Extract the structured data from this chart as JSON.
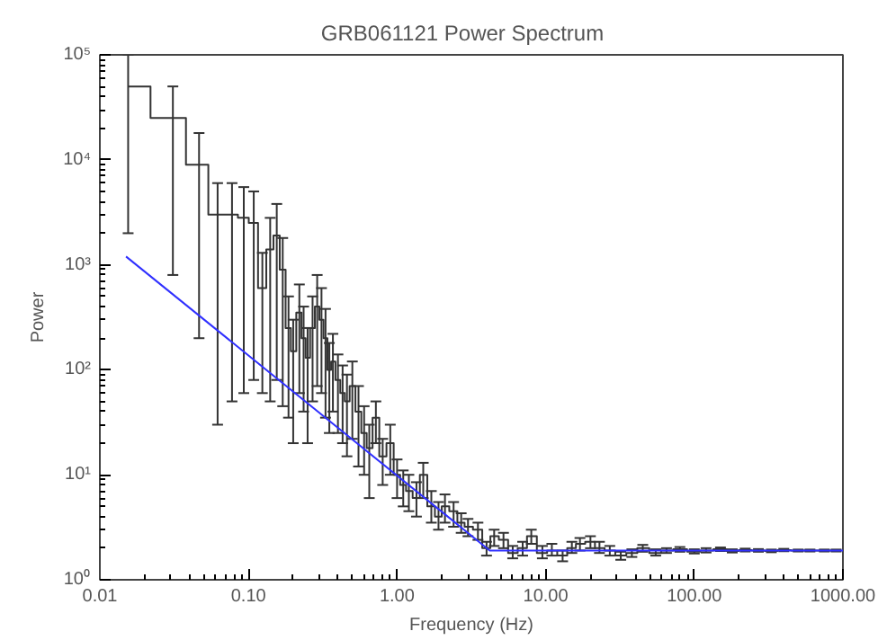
{
  "chart_data": {
    "type": "step",
    "title": "GRB061121    Power Spectrum",
    "xlabel": "Frequency (Hz)",
    "ylabel": "Power",
    "log": "xy",
    "grid": false,
    "xlim": [
      0.01,
      1000
    ],
    "ylim": [
      1,
      100000
    ],
    "xticks": [
      {
        "value": 0.01,
        "label": "0.01"
      },
      {
        "value": 0.1,
        "label": "0.10"
      },
      {
        "value": 1,
        "label": "1.00"
      },
      {
        "value": 10,
        "label": "10.00"
      },
      {
        "value": 100,
        "label": "100.00"
      },
      {
        "value": 1000,
        "label": "1000.00"
      }
    ],
    "yticks": [
      {
        "value": 1,
        "label": "10⁰"
      },
      {
        "value": 10,
        "label": "10¹"
      },
      {
        "value": 100,
        "label": "10²"
      },
      {
        "value": 1000,
        "label": "10³"
      },
      {
        "value": 10000,
        "label": "10⁴"
      },
      {
        "value": 100000,
        "label": "10⁵"
      }
    ],
    "series": [
      {
        "color": "#333333",
        "x": [
          0.0155,
          0.031,
          0.0465,
          0.062,
          0.0775,
          0.093,
          0.1085,
          0.124,
          0.14,
          0.155,
          0.17,
          0.186,
          0.2,
          0.22,
          0.235,
          0.25,
          0.27,
          0.29,
          0.31,
          0.33,
          0.35,
          0.37,
          0.4,
          0.43,
          0.46,
          0.5,
          0.55,
          0.6,
          0.65,
          0.72,
          0.8,
          0.9,
          1.0,
          1.1,
          1.2,
          1.35,
          1.5,
          1.7,
          1.9,
          2.1,
          2.4,
          2.7,
          3.0,
          3.5,
          4.0,
          4.5,
          5.2,
          6.0,
          7.0,
          8.0,
          9.5,
          11,
          13,
          15,
          17,
          20,
          23,
          27,
          32,
          38,
          45,
          55,
          65,
          80,
          100,
          120,
          150,
          180,
          220,
          270,
          330,
          400,
          500,
          600,
          750,
          900
        ],
        "values": [
          50000,
          25000,
          9000,
          3000,
          3000,
          2800,
          2500,
          600,
          1400,
          1900,
          900,
          250,
          150,
          350,
          200,
          130,
          250,
          400,
          300,
          200,
          100,
          120,
          80,
          60,
          50,
          70,
          40,
          25,
          18,
          35,
          15,
          20,
          10,
          8,
          7,
          6,
          10,
          5,
          4,
          5,
          4.5,
          3.5,
          3.2,
          3.0,
          2.0,
          2.6,
          2.4,
          1.8,
          2.0,
          2.6,
          1.8,
          1.9,
          1.7,
          2.0,
          2.2,
          2.3,
          2.0,
          1.9,
          1.7,
          1.8,
          2.0,
          1.8,
          1.9,
          1.95,
          1.85,
          1.9,
          1.95,
          1.88,
          1.92,
          1.9,
          1.88,
          1.92,
          1.9,
          1.9,
          1.9,
          1.9
        ],
        "errors": [
          [
            2000,
            100000
          ],
          [
            800,
            50000
          ],
          [
            200,
            18000
          ],
          [
            30,
            6000
          ],
          [
            50,
            6000
          ],
          [
            60,
            5500
          ],
          [
            80,
            5000
          ],
          [
            60,
            1300
          ],
          [
            50,
            2800
          ],
          [
            80,
            3800
          ],
          [
            45,
            1800
          ],
          [
            35,
            500
          ],
          [
            20,
            300
          ],
          [
            60,
            650
          ],
          [
            40,
            400
          ],
          [
            20,
            250
          ],
          [
            50,
            500
          ],
          [
            70,
            800
          ],
          [
            60,
            600
          ],
          [
            35,
            380
          ],
          [
            25,
            180
          ],
          [
            40,
            220
          ],
          [
            25,
            140
          ],
          [
            20,
            110
          ],
          [
            15,
            90
          ],
          [
            22,
            120
          ],
          [
            12,
            70
          ],
          [
            10,
            45
          ],
          [
            6,
            30
          ],
          [
            20,
            50
          ],
          [
            8,
            22
          ],
          [
            10,
            30
          ],
          [
            6,
            14
          ],
          [
            5,
            11
          ],
          [
            4.5,
            10
          ],
          [
            4,
            8.5
          ],
          [
            6,
            13
          ],
          [
            3.5,
            7
          ],
          [
            3,
            5.5
          ],
          [
            3.5,
            6.5
          ],
          [
            3.2,
            5.5
          ],
          [
            2.8,
            4.3
          ],
          [
            2.6,
            3.8
          ],
          [
            2.4,
            3.5
          ],
          [
            1.7,
            2.3
          ],
          [
            2.1,
            3.0
          ],
          [
            2.0,
            2.8
          ],
          [
            1.6,
            2.1
          ],
          [
            1.7,
            2.3
          ],
          [
            2.2,
            3.0
          ],
          [
            1.6,
            2.1
          ],
          [
            1.7,
            2.2
          ],
          [
            1.5,
            1.9
          ],
          [
            1.8,
            2.3
          ],
          [
            1.9,
            2.5
          ],
          [
            2.0,
            2.6
          ],
          [
            1.8,
            2.3
          ],
          [
            1.7,
            2.1
          ],
          [
            1.55,
            1.85
          ],
          [
            1.65,
            1.95
          ],
          [
            1.85,
            2.15
          ],
          [
            1.7,
            1.95
          ],
          [
            1.8,
            2.0
          ],
          [
            1.85,
            2.05
          ],
          [
            1.78,
            1.95
          ],
          [
            1.82,
            2.0
          ],
          [
            1.88,
            2.03
          ],
          [
            1.82,
            1.95
          ],
          [
            1.86,
            1.98
          ],
          [
            1.85,
            1.96
          ],
          [
            1.83,
            1.94
          ],
          [
            1.87,
            1.97
          ],
          [
            1.86,
            1.94
          ],
          [
            1.86,
            1.94
          ],
          [
            1.86,
            1.94
          ],
          [
            1.86,
            1.94
          ]
        ]
      },
      {
        "type": "line",
        "color": "#3030ff",
        "x": [
          0.015,
          4.2,
          1000
        ],
        "values": [
          1200,
          1.9,
          1.9
        ]
      }
    ]
  }
}
